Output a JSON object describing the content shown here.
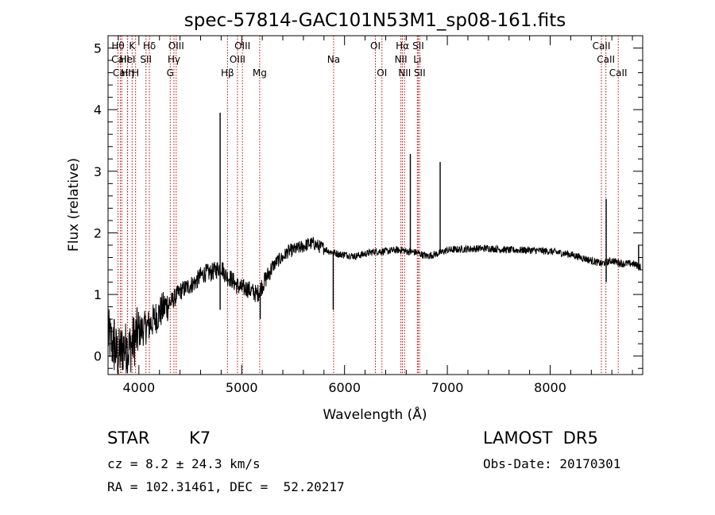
{
  "chart_data": {
    "type": "line",
    "title": "spec-57814-GAC101N53M1_sp08-161.fits",
    "xlabel": "Wavelength (Å)",
    "ylabel": "Flux (relative)",
    "xlim": [
      3700,
      8900
    ],
    "ylim": [
      -0.3,
      5.2
    ],
    "xticks": [
      4000,
      5000,
      6000,
      7000,
      8000
    ],
    "yticks": [
      0,
      1,
      2,
      3,
      4,
      5
    ],
    "spectrum": {
      "x": [
        3700,
        3750,
        3800,
        3850,
        3900,
        3950,
        4000,
        4050,
        4100,
        4150,
        4200,
        4250,
        4300,
        4350,
        4400,
        4450,
        4500,
        4550,
        4600,
        4650,
        4700,
        4750,
        4800,
        4850,
        4900,
        4950,
        5000,
        5050,
        5100,
        5150,
        5200,
        5250,
        5300,
        5350,
        5400,
        5450,
        5500,
        5550,
        5600,
        5650,
        5700,
        5750,
        5800,
        5850,
        5900,
        5950,
        6000,
        6100,
        6200,
        6300,
        6400,
        6500,
        6560,
        6600,
        6700,
        6800,
        6900,
        7000,
        7200,
        7400,
        7600,
        7800,
        8000,
        8200,
        8400,
        8500,
        8600,
        8700,
        8800,
        8880
      ],
      "y": [
        0.35,
        0.15,
        0.0,
        0.15,
        0.1,
        0.25,
        0.4,
        0.45,
        0.5,
        0.6,
        0.7,
        0.8,
        0.85,
        0.95,
        1.05,
        1.1,
        1.15,
        1.2,
        1.3,
        1.35,
        1.35,
        1.4,
        1.45,
        1.3,
        1.25,
        1.15,
        1.1,
        1.1,
        1.05,
        1.0,
        1.15,
        1.3,
        1.45,
        1.55,
        1.6,
        1.7,
        1.72,
        1.75,
        1.78,
        1.82,
        1.83,
        1.78,
        1.75,
        1.7,
        1.68,
        1.65,
        1.65,
        1.62,
        1.66,
        1.7,
        1.7,
        1.72,
        1.72,
        1.7,
        1.68,
        1.62,
        1.66,
        1.72,
        1.74,
        1.75,
        1.72,
        1.72,
        1.7,
        1.65,
        1.55,
        1.5,
        1.55,
        1.5,
        1.5,
        1.45
      ]
    },
    "features": [
      {
        "x": 3760,
        "y": 0.6
      },
      {
        "x": 3840,
        "y": -0.2
      },
      {
        "x": 3880,
        "y": 0.3
      },
      {
        "x": 4790,
        "y": 3.95
      },
      {
        "x": 4790,
        "y": 0.75
      },
      {
        "x": 5180,
        "y": 0.6
      },
      {
        "x": 5890,
        "y": 0.75
      },
      {
        "x": 6640,
        "y": 3.28
      },
      {
        "x": 6930,
        "y": 3.15
      },
      {
        "x": 8545,
        "y": 2.55
      },
      {
        "x": 8545,
        "y": 1.2
      },
      {
        "x": 8860,
        "y": 1.8
      }
    ],
    "lines": [
      {
        "label": "Hθ",
        "x": 3797,
        "row": 0
      },
      {
        "label": "CaII",
        "x": 3820,
        "row": 1
      },
      {
        "label": "CaII",
        "x": 3834,
        "row": 2
      },
      {
        "label": "HeI",
        "x": 3889,
        "row": 1
      },
      {
        "label": "Hη",
        "x": 3890,
        "row": 2
      },
      {
        "label": "K",
        "x": 3934,
        "row": 0
      },
      {
        "label": "H",
        "x": 3968,
        "row": 2
      },
      {
        "label": "Hδ",
        "x": 4102,
        "row": 0
      },
      {
        "label": "SII",
        "x": 4069,
        "row": 1
      },
      {
        "label": "OIII",
        "x": 4363,
        "row": 0
      },
      {
        "label": "Hγ",
        "x": 4341,
        "row": 1
      },
      {
        "label": "G",
        "x": 4305,
        "row": 2
      },
      {
        "label": "Hβ",
        "x": 4862,
        "row": 2
      },
      {
        "label": "OIII",
        "x": 5007,
        "row": 0
      },
      {
        "label": "OIII",
        "x": 4959,
        "row": 1
      },
      {
        "label": "Mg",
        "x": 5175,
        "row": 2
      },
      {
        "label": "Na",
        "x": 5894,
        "row": 1
      },
      {
        "label": "OI",
        "x": 6300,
        "row": 0
      },
      {
        "label": "OI",
        "x": 6364,
        "row": 2
      },
      {
        "label": "Hα",
        "x": 6563,
        "row": 0
      },
      {
        "label": "NII",
        "x": 6548,
        "row": 1
      },
      {
        "label": "NII",
        "x": 6584,
        "row": 2
      },
      {
        "label": "SII",
        "x": 6717,
        "row": 0
      },
      {
        "label": "Li",
        "x": 6708,
        "row": 1
      },
      {
        "label": "SII",
        "x": 6731,
        "row": 2
      },
      {
        "label": "CaII",
        "x": 8498,
        "row": 0
      },
      {
        "label": "CaII",
        "x": 8542,
        "row": 1
      },
      {
        "label": "CaII",
        "x": 8662,
        "row": 2
      }
    ],
    "colors": {
      "line": "#000000",
      "marker": "#c00000"
    },
    "grid": false
  },
  "info": {
    "class_label": "STAR",
    "subclass": "K7",
    "survey": "LAMOST  DR5",
    "cz": "cz = 8.2 ± 24.3 km/s",
    "obs_date": "Obs-Date: 20170301",
    "coords": "RA = 102.31461, DEC =  52.20217"
  }
}
